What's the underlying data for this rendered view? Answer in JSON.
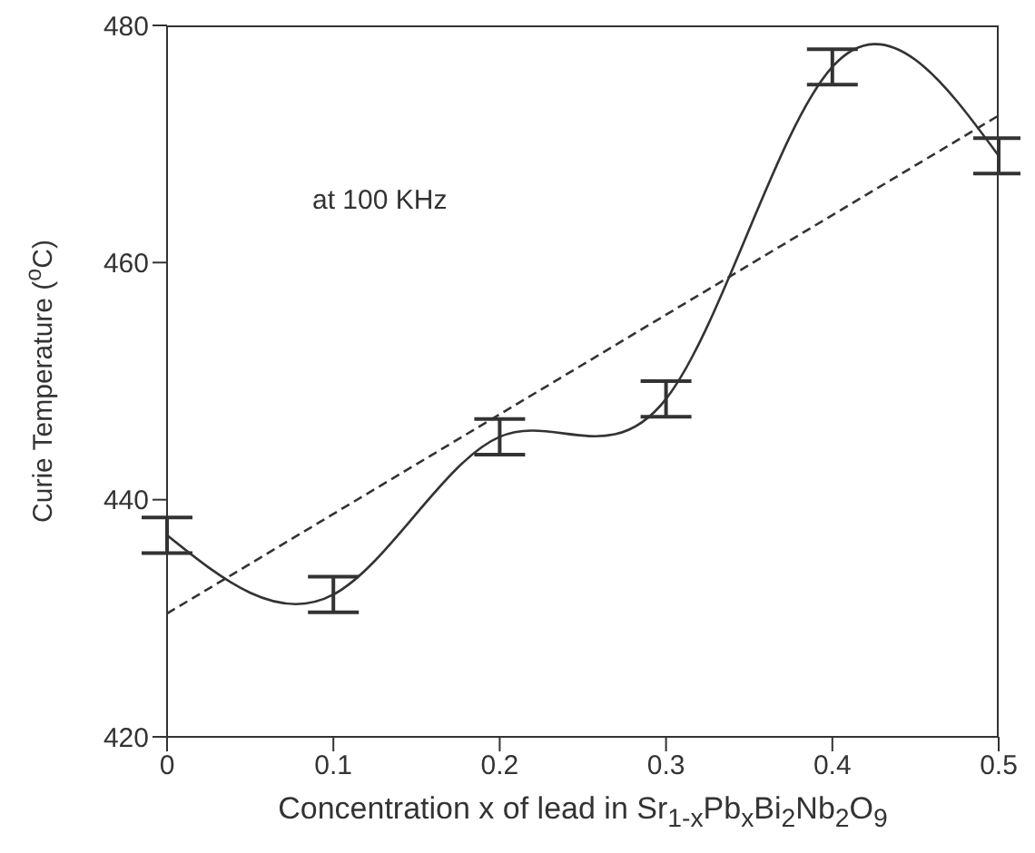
{
  "chart_data": {
    "type": "line",
    "xlabel": "Concentration x of lead in Sr$_{1-x}$Pb$_{x}$Bi$_{2}$Nb$_{2}$O$_{9}$",
    "ylabel": "Curie Temperature ($^{o}$C)",
    "annotations": [
      "at 100 KHz"
    ],
    "x": [
      0,
      0.1,
      0.2,
      0.3,
      0.4,
      0.5
    ],
    "series": [
      {
        "color": "#333333",
        "values": [
          437,
          432,
          445.3,
          448.5,
          476.5,
          469
        ],
        "errors": [
          1.5,
          1.5,
          1.5,
          1.5,
          1.5,
          1.5
        ]
      },
      {
        "x": [
          0,
          0.5
        ],
        "color": "#333333",
        "values": [
          430.4,
          472.4
        ],
        "line_style": "dashed"
      }
    ],
    "xlim": [
      0,
      0.5
    ],
    "xticks": [
      0,
      0.1,
      0.2,
      0.3,
      0.4,
      0.5
    ],
    "ylim": [
      420,
      480
    ],
    "yticks": [
      420,
      440,
      460,
      480
    ],
    "grid": false,
    "legend": false,
    "marker": "none",
    "line_style": "solid"
  }
}
